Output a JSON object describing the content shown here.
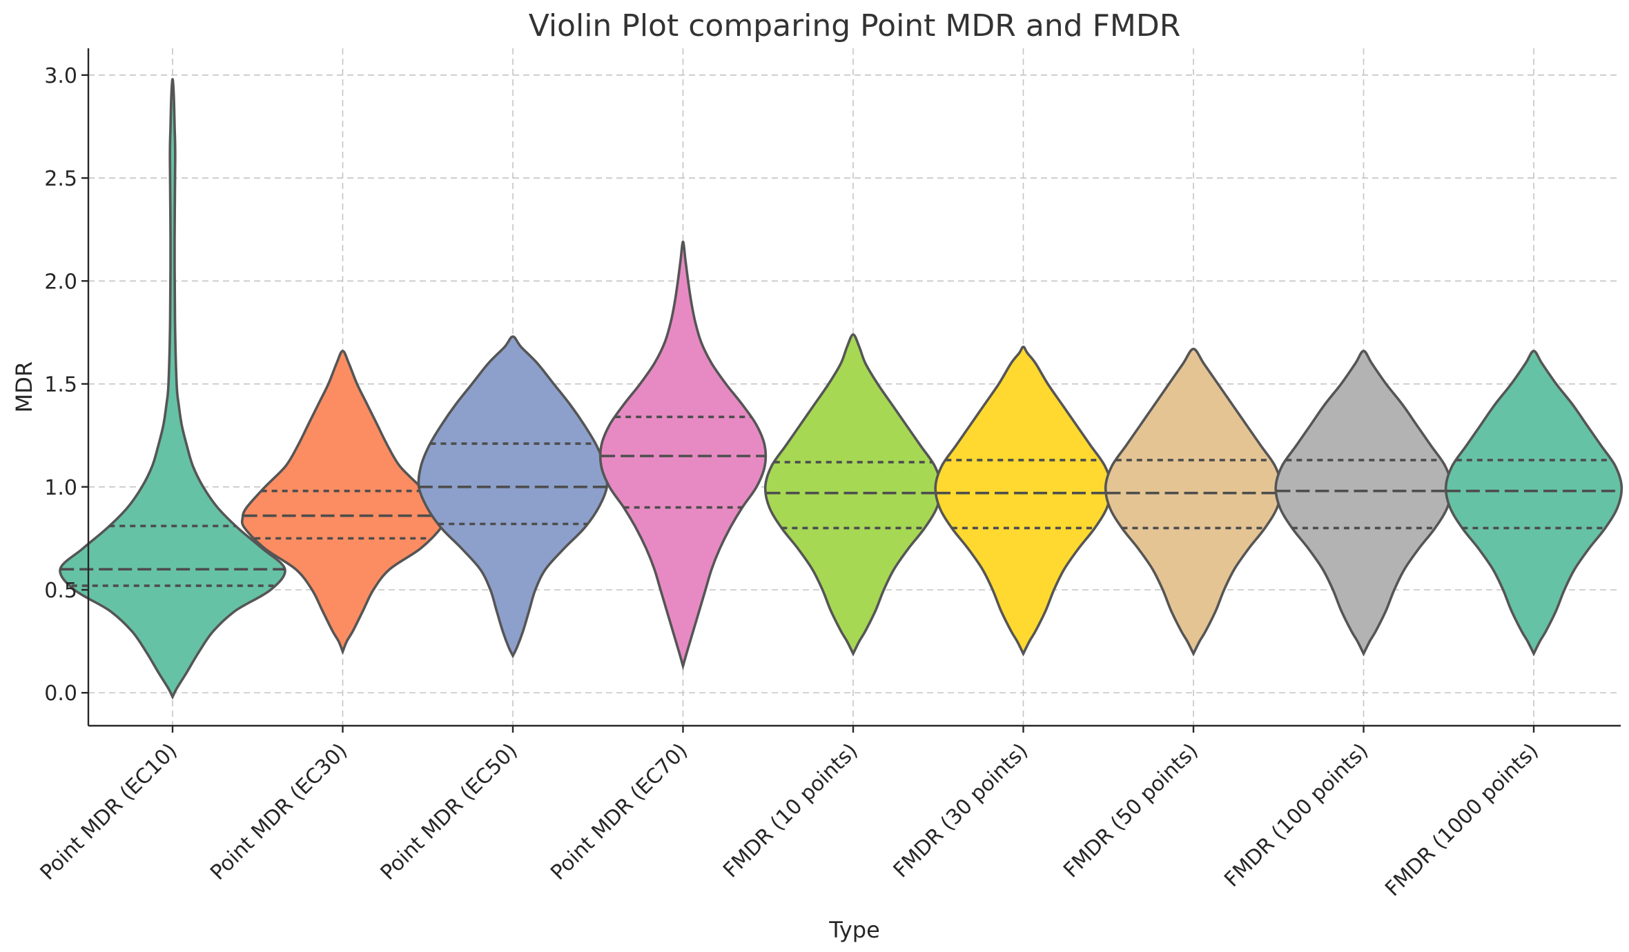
{
  "chart_data": {
    "type": "violin",
    "title": "Violin Plot comparing Point MDR and FMDR",
    "xlabel": "Type",
    "ylabel": "MDR",
    "ylim": [
      -0.16,
      3.13
    ],
    "yticks": [
      0.0,
      0.5,
      1.0,
      1.5,
      2.0,
      2.5,
      3.0
    ],
    "ytick_labels": [
      "0.0",
      "0.5",
      "1.0",
      "1.5",
      "2.0",
      "2.5",
      "3.0"
    ],
    "grid": true,
    "inner": "quartile",
    "categories": [
      "Point MDR (EC10)",
      "Point MDR (EC30)",
      "Point MDR (EC50)",
      "Point MDR (EC70)",
      "FMDR (10 points)",
      "FMDR (30 points)",
      "FMDR (50 points)",
      "FMDR (100 points)",
      "FMDR (1000 points)"
    ],
    "colors": [
      "#66c2a5",
      "#fc8d62",
      "#8da0cb",
      "#e78ac3",
      "#a6d854",
      "#ffd92f",
      "#e5c494",
      "#b3b3b3",
      "#66c2a5"
    ],
    "violins": [
      {
        "min": -0.02,
        "max": 2.98,
        "q1": 0.52,
        "median": 0.6,
        "q3": 0.81,
        "profile": [
          [
            -0.02,
            0.0
          ],
          [
            0.02,
            0.02
          ],
          [
            0.1,
            0.07
          ],
          [
            0.2,
            0.13
          ],
          [
            0.3,
            0.2
          ],
          [
            0.4,
            0.31
          ],
          [
            0.5,
            0.48
          ],
          [
            0.6,
            0.55
          ],
          [
            0.7,
            0.44
          ],
          [
            0.8,
            0.32
          ],
          [
            0.9,
            0.22
          ],
          [
            1.0,
            0.15
          ],
          [
            1.1,
            0.1
          ],
          [
            1.2,
            0.07
          ],
          [
            1.3,
            0.045
          ],
          [
            1.4,
            0.03
          ],
          [
            1.5,
            0.02
          ],
          [
            1.8,
            0.012
          ],
          [
            2.2,
            0.01
          ],
          [
            2.6,
            0.013
          ],
          [
            2.75,
            0.01
          ],
          [
            2.9,
            0.006
          ],
          [
            2.98,
            0.0
          ]
        ]
      },
      {
        "min": 0.2,
        "max": 1.66,
        "q1": 0.75,
        "median": 0.86,
        "q3": 0.98,
        "profile": [
          [
            0.2,
            0.0
          ],
          [
            0.25,
            0.02
          ],
          [
            0.3,
            0.05
          ],
          [
            0.4,
            0.1
          ],
          [
            0.5,
            0.15
          ],
          [
            0.6,
            0.23
          ],
          [
            0.7,
            0.38
          ],
          [
            0.8,
            0.48
          ],
          [
            0.85,
            0.49
          ],
          [
            0.9,
            0.47
          ],
          [
            1.0,
            0.38
          ],
          [
            1.1,
            0.28
          ],
          [
            1.2,
            0.22
          ],
          [
            1.3,
            0.17
          ],
          [
            1.4,
            0.12
          ],
          [
            1.5,
            0.07
          ],
          [
            1.6,
            0.03
          ],
          [
            1.66,
            0.0
          ]
        ]
      },
      {
        "min": 0.18,
        "max": 1.73,
        "q1": 0.82,
        "median": 1.0,
        "q3": 1.21,
        "profile": [
          [
            0.18,
            0.0
          ],
          [
            0.22,
            0.02
          ],
          [
            0.3,
            0.05
          ],
          [
            0.4,
            0.08
          ],
          [
            0.5,
            0.11
          ],
          [
            0.6,
            0.16
          ],
          [
            0.7,
            0.25
          ],
          [
            0.8,
            0.35
          ],
          [
            0.9,
            0.42
          ],
          [
            1.0,
            0.46
          ],
          [
            1.1,
            0.45
          ],
          [
            1.2,
            0.41
          ],
          [
            1.3,
            0.35
          ],
          [
            1.4,
            0.28
          ],
          [
            1.5,
            0.2
          ],
          [
            1.6,
            0.12
          ],
          [
            1.68,
            0.04
          ],
          [
            1.73,
            0.0
          ]
        ]
      },
      {
        "min": 0.13,
        "max": 2.19,
        "q1": 0.9,
        "median": 1.15,
        "q3": 1.34,
        "profile": [
          [
            0.13,
            0.0
          ],
          [
            0.2,
            0.02
          ],
          [
            0.3,
            0.05
          ],
          [
            0.4,
            0.08
          ],
          [
            0.5,
            0.11
          ],
          [
            0.6,
            0.14
          ],
          [
            0.7,
            0.18
          ],
          [
            0.8,
            0.23
          ],
          [
            0.9,
            0.29
          ],
          [
            1.0,
            0.36
          ],
          [
            1.1,
            0.4
          ],
          [
            1.2,
            0.4
          ],
          [
            1.3,
            0.36
          ],
          [
            1.4,
            0.29
          ],
          [
            1.5,
            0.21
          ],
          [
            1.6,
            0.14
          ],
          [
            1.7,
            0.09
          ],
          [
            1.8,
            0.06
          ],
          [
            1.9,
            0.04
          ],
          [
            2.0,
            0.025
          ],
          [
            2.1,
            0.012
          ],
          [
            2.19,
            0.0
          ]
        ]
      },
      {
        "min": 0.19,
        "max": 1.74,
        "q1": 0.8,
        "median": 0.97,
        "q3": 1.12,
        "profile": [
          [
            0.19,
            0.0
          ],
          [
            0.25,
            0.03
          ],
          [
            0.3,
            0.06
          ],
          [
            0.4,
            0.11
          ],
          [
            0.5,
            0.15
          ],
          [
            0.6,
            0.2
          ],
          [
            0.7,
            0.27
          ],
          [
            0.8,
            0.35
          ],
          [
            0.9,
            0.41
          ],
          [
            1.0,
            0.43
          ],
          [
            1.1,
            0.4
          ],
          [
            1.2,
            0.33
          ],
          [
            1.3,
            0.26
          ],
          [
            1.4,
            0.19
          ],
          [
            1.5,
            0.12
          ],
          [
            1.6,
            0.06
          ],
          [
            1.68,
            0.03
          ],
          [
            1.74,
            0.0
          ]
        ]
      },
      {
        "min": 0.19,
        "max": 1.68,
        "q1": 0.8,
        "median": 0.97,
        "q3": 1.13,
        "profile": [
          [
            0.19,
            0.0
          ],
          [
            0.25,
            0.03
          ],
          [
            0.3,
            0.06
          ],
          [
            0.4,
            0.11
          ],
          [
            0.5,
            0.15
          ],
          [
            0.6,
            0.2
          ],
          [
            0.7,
            0.27
          ],
          [
            0.8,
            0.35
          ],
          [
            0.9,
            0.41
          ],
          [
            1.0,
            0.43
          ],
          [
            1.1,
            0.4
          ],
          [
            1.2,
            0.33
          ],
          [
            1.3,
            0.26
          ],
          [
            1.4,
            0.19
          ],
          [
            1.5,
            0.12
          ],
          [
            1.6,
            0.06
          ],
          [
            1.65,
            0.02
          ],
          [
            1.68,
            0.0
          ]
        ]
      },
      {
        "min": 0.19,
        "max": 1.67,
        "q1": 0.8,
        "median": 0.97,
        "q3": 1.13,
        "profile": [
          [
            0.19,
            0.0
          ],
          [
            0.25,
            0.03
          ],
          [
            0.3,
            0.06
          ],
          [
            0.4,
            0.11
          ],
          [
            0.5,
            0.15
          ],
          [
            0.6,
            0.2
          ],
          [
            0.7,
            0.27
          ],
          [
            0.8,
            0.35
          ],
          [
            0.9,
            0.41
          ],
          [
            1.0,
            0.43
          ],
          [
            1.1,
            0.4
          ],
          [
            1.2,
            0.33
          ],
          [
            1.3,
            0.26
          ],
          [
            1.4,
            0.19
          ],
          [
            1.5,
            0.12
          ],
          [
            1.6,
            0.05
          ],
          [
            1.67,
            0.0
          ]
        ]
      },
      {
        "min": 0.19,
        "max": 1.66,
        "q1": 0.8,
        "median": 0.98,
        "q3": 1.13,
        "profile": [
          [
            0.19,
            0.0
          ],
          [
            0.25,
            0.03
          ],
          [
            0.3,
            0.06
          ],
          [
            0.4,
            0.11
          ],
          [
            0.5,
            0.15
          ],
          [
            0.6,
            0.2
          ],
          [
            0.7,
            0.27
          ],
          [
            0.8,
            0.35
          ],
          [
            0.9,
            0.41
          ],
          [
            1.0,
            0.43
          ],
          [
            1.1,
            0.4
          ],
          [
            1.2,
            0.33
          ],
          [
            1.3,
            0.26
          ],
          [
            1.4,
            0.19
          ],
          [
            1.5,
            0.11
          ],
          [
            1.6,
            0.04
          ],
          [
            1.66,
            0.0
          ]
        ]
      },
      {
        "min": 0.19,
        "max": 1.66,
        "q1": 0.8,
        "median": 0.98,
        "q3": 1.13,
        "profile": [
          [
            0.19,
            0.0
          ],
          [
            0.25,
            0.03
          ],
          [
            0.3,
            0.06
          ],
          [
            0.4,
            0.11
          ],
          [
            0.5,
            0.15
          ],
          [
            0.6,
            0.2
          ],
          [
            0.7,
            0.27
          ],
          [
            0.8,
            0.35
          ],
          [
            0.9,
            0.41
          ],
          [
            1.0,
            0.43
          ],
          [
            1.1,
            0.4
          ],
          [
            1.2,
            0.33
          ],
          [
            1.3,
            0.26
          ],
          [
            1.4,
            0.19
          ],
          [
            1.5,
            0.11
          ],
          [
            1.6,
            0.04
          ],
          [
            1.66,
            0.0
          ]
        ]
      }
    ]
  }
}
